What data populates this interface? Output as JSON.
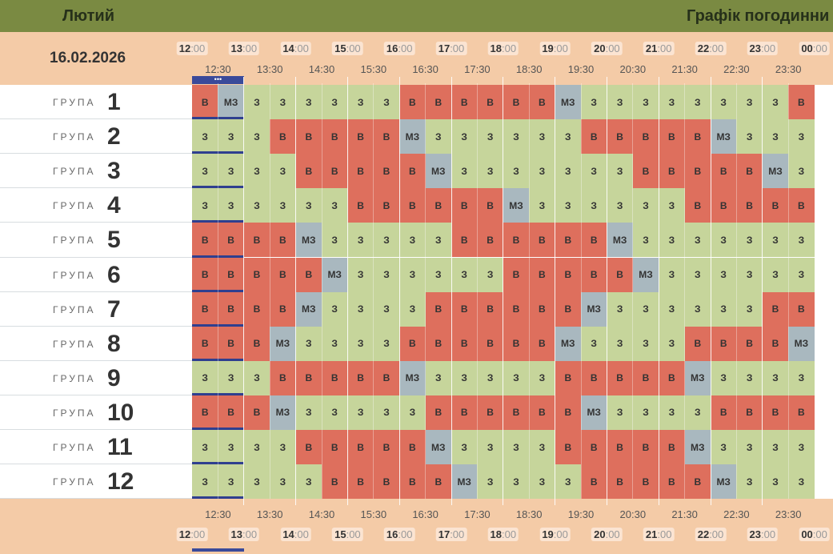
{
  "header": {
    "month": "Лютий",
    "title": "Графік погодинни"
  },
  "date": "16.02.2026",
  "hour_labels": [
    {
      "h": "12",
      "m": ":00"
    },
    {
      "h": "13",
      "m": ":00"
    },
    {
      "h": "14",
      "m": ":00"
    },
    {
      "h": "15",
      "m": ":00"
    },
    {
      "h": "16",
      "m": ":00"
    },
    {
      "h": "17",
      "m": ":00"
    },
    {
      "h": "18",
      "m": ":00"
    },
    {
      "h": "19",
      "m": ":00"
    },
    {
      "h": "20",
      "m": ":00"
    },
    {
      "h": "21",
      "m": ":00"
    },
    {
      "h": "22",
      "m": ":00"
    },
    {
      "h": "23",
      "m": ":00"
    },
    {
      "h": "00",
      "m": ":00"
    }
  ],
  "half_labels": [
    "12:30",
    "13:30",
    "14:30",
    "15:30",
    "16:30",
    "17:30",
    "18:30",
    "19:30",
    "20:30",
    "21:30",
    "22:30",
    "23:30"
  ],
  "current_marker": "•••",
  "groups": [
    {
      "label": "ГРУПА",
      "number": "1",
      "cells": [
        "В",
        "МЗ",
        "З",
        "З",
        "З",
        "З",
        "З",
        "З",
        "В",
        "В",
        "В",
        "В",
        "В",
        "В",
        "МЗ",
        "З",
        "З",
        "З",
        "З",
        "З",
        "З",
        "З",
        "З",
        "В"
      ]
    },
    {
      "label": "ГРУПА",
      "number": "2",
      "cells": [
        "З",
        "З",
        "З",
        "В",
        "В",
        "В",
        "В",
        "В",
        "МЗ",
        "З",
        "З",
        "З",
        "З",
        "З",
        "З",
        "В",
        "В",
        "В",
        "В",
        "В",
        "МЗ",
        "З",
        "З",
        "З"
      ]
    },
    {
      "label": "ГРУПА",
      "number": "3",
      "cells": [
        "З",
        "З",
        "З",
        "З",
        "В",
        "В",
        "В",
        "В",
        "В",
        "МЗ",
        "З",
        "З",
        "З",
        "З",
        "З",
        "З",
        "З",
        "В",
        "В",
        "В",
        "В",
        "В",
        "МЗ",
        "З"
      ]
    },
    {
      "label": "ГРУПА",
      "number": "4",
      "cells": [
        "З",
        "З",
        "З",
        "З",
        "З",
        "З",
        "В",
        "В",
        "В",
        "В",
        "В",
        "В",
        "МЗ",
        "З",
        "З",
        "З",
        "З",
        "З",
        "З",
        "В",
        "В",
        "В",
        "В",
        "В"
      ]
    },
    {
      "label": "ГРУПА",
      "number": "5",
      "cells": [
        "В",
        "В",
        "В",
        "В",
        "МЗ",
        "З",
        "З",
        "З",
        "З",
        "З",
        "В",
        "В",
        "В",
        "В",
        "В",
        "В",
        "МЗ",
        "З",
        "З",
        "З",
        "З",
        "З",
        "З",
        "З"
      ]
    },
    {
      "label": "ГРУПА",
      "number": "6",
      "cells": [
        "В",
        "В",
        "В",
        "В",
        "В",
        "МЗ",
        "З",
        "З",
        "З",
        "З",
        "З",
        "З",
        "В",
        "В",
        "В",
        "В",
        "В",
        "МЗ",
        "З",
        "З",
        "З",
        "З",
        "З",
        "З"
      ]
    },
    {
      "label": "ГРУПА",
      "number": "7",
      "cells": [
        "В",
        "В",
        "В",
        "В",
        "МЗ",
        "З",
        "З",
        "З",
        "З",
        "В",
        "В",
        "В",
        "В",
        "В",
        "В",
        "МЗ",
        "З",
        "З",
        "З",
        "З",
        "З",
        "З",
        "В",
        "В"
      ]
    },
    {
      "label": "ГРУПА",
      "number": "8",
      "cells": [
        "В",
        "В",
        "В",
        "МЗ",
        "З",
        "З",
        "З",
        "З",
        "В",
        "В",
        "В",
        "В",
        "В",
        "В",
        "МЗ",
        "З",
        "З",
        "З",
        "З",
        "В",
        "В",
        "В",
        "В",
        "МЗ"
      ]
    },
    {
      "label": "ГРУПА",
      "number": "9",
      "cells": [
        "З",
        "З",
        "З",
        "В",
        "В",
        "В",
        "В",
        "В",
        "МЗ",
        "З",
        "З",
        "З",
        "З",
        "З",
        "В",
        "В",
        "В",
        "В",
        "В",
        "МЗ",
        "З",
        "З",
        "З",
        "З"
      ]
    },
    {
      "label": "ГРУПА",
      "number": "10",
      "cells": [
        "В",
        "В",
        "В",
        "МЗ",
        "З",
        "З",
        "З",
        "З",
        "З",
        "В",
        "В",
        "В",
        "В",
        "В",
        "В",
        "МЗ",
        "З",
        "З",
        "З",
        "З",
        "В",
        "В",
        "В",
        "В"
      ]
    },
    {
      "label": "ГРУПА",
      "number": "11",
      "cells": [
        "З",
        "З",
        "З",
        "З",
        "В",
        "В",
        "В",
        "В",
        "В",
        "МЗ",
        "З",
        "З",
        "З",
        "З",
        "В",
        "В",
        "В",
        "В",
        "В",
        "МЗ",
        "З",
        "З",
        "З",
        "З"
      ]
    },
    {
      "label": "ГРУПА",
      "number": "12",
      "cells": [
        "З",
        "З",
        "З",
        "З",
        "З",
        "В",
        "В",
        "В",
        "В",
        "В",
        "МЗ",
        "З",
        "З",
        "З",
        "З",
        "В",
        "В",
        "В",
        "В",
        "В",
        "МЗ",
        "З",
        "З",
        "З"
      ]
    }
  ]
}
